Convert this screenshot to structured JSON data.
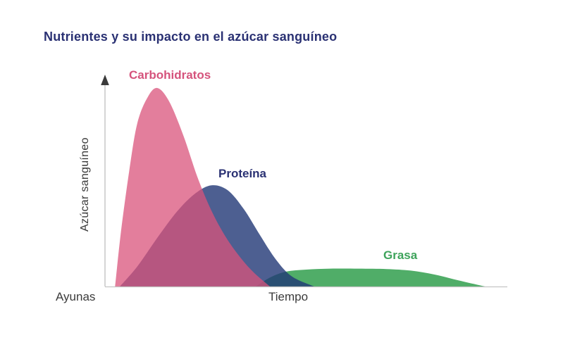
{
  "title": {
    "text": "Nutrientes y su impacto en el azúcar sanguíneo",
    "color": "#2a3173"
  },
  "axes": {
    "y_label": "Azúcar sanguíneo",
    "x_label": "Tiempo",
    "origin_label": "Ayunas",
    "axis_line_color": "#bdbdbd",
    "arrow_color": "#3a3a3a",
    "text_color": "#3b3b3b"
  },
  "chart_data": {
    "type": "area",
    "title": "Nutrientes y su impacto en el azúcar sanguíneo",
    "xlabel": "Tiempo",
    "ylabel": "Azúcar sanguíneo",
    "x_origin_label": "Ayunas",
    "grid": false,
    "numeric_axes": false,
    "legend_position": "inline-labels-near-curves",
    "note": "Conceptual curves; x = relative position along time axis (0-1), y = relative blood sugar rise (0-1 of carbohydrate peak)",
    "series": [
      {
        "name": "Carbohidratos",
        "label_color": "#d5537c",
        "fill_color": "#d9537b",
        "fill_opacity": 0.75,
        "x": [
          0.025,
          0.04,
          0.06,
          0.08,
          0.105,
          0.13,
          0.16,
          0.195,
          0.23,
          0.265,
          0.3,
          0.335,
          0.37,
          0.41
        ],
        "y": [
          0,
          0.28,
          0.58,
          0.82,
          0.95,
          1.0,
          0.93,
          0.76,
          0.55,
          0.38,
          0.25,
          0.15,
          0.07,
          0
        ]
      },
      {
        "name": "Proteína",
        "label_color": "#2a3173",
        "fill_color": "#203775",
        "fill_opacity": 0.8,
        "x": [
          0.037,
          0.08,
          0.13,
          0.18,
          0.225,
          0.265,
          0.305,
          0.345,
          0.385,
          0.425,
          0.465,
          0.52
        ],
        "y": [
          0,
          0.1,
          0.245,
          0.38,
          0.47,
          0.51,
          0.485,
          0.39,
          0.26,
          0.135,
          0.05,
          0
        ]
      },
      {
        "name": "Grasa",
        "label_color": "#3ea35b",
        "fill_color": "#36a151",
        "fill_opacity": 0.87,
        "x": [
          0.375,
          0.41,
          0.45,
          0.5,
          0.56,
          0.63,
          0.7,
          0.76,
          0.82,
          0.88,
          0.945
        ],
        "y": [
          0,
          0.045,
          0.075,
          0.085,
          0.09,
          0.09,
          0.088,
          0.08,
          0.06,
          0.03,
          0
        ]
      }
    ]
  }
}
